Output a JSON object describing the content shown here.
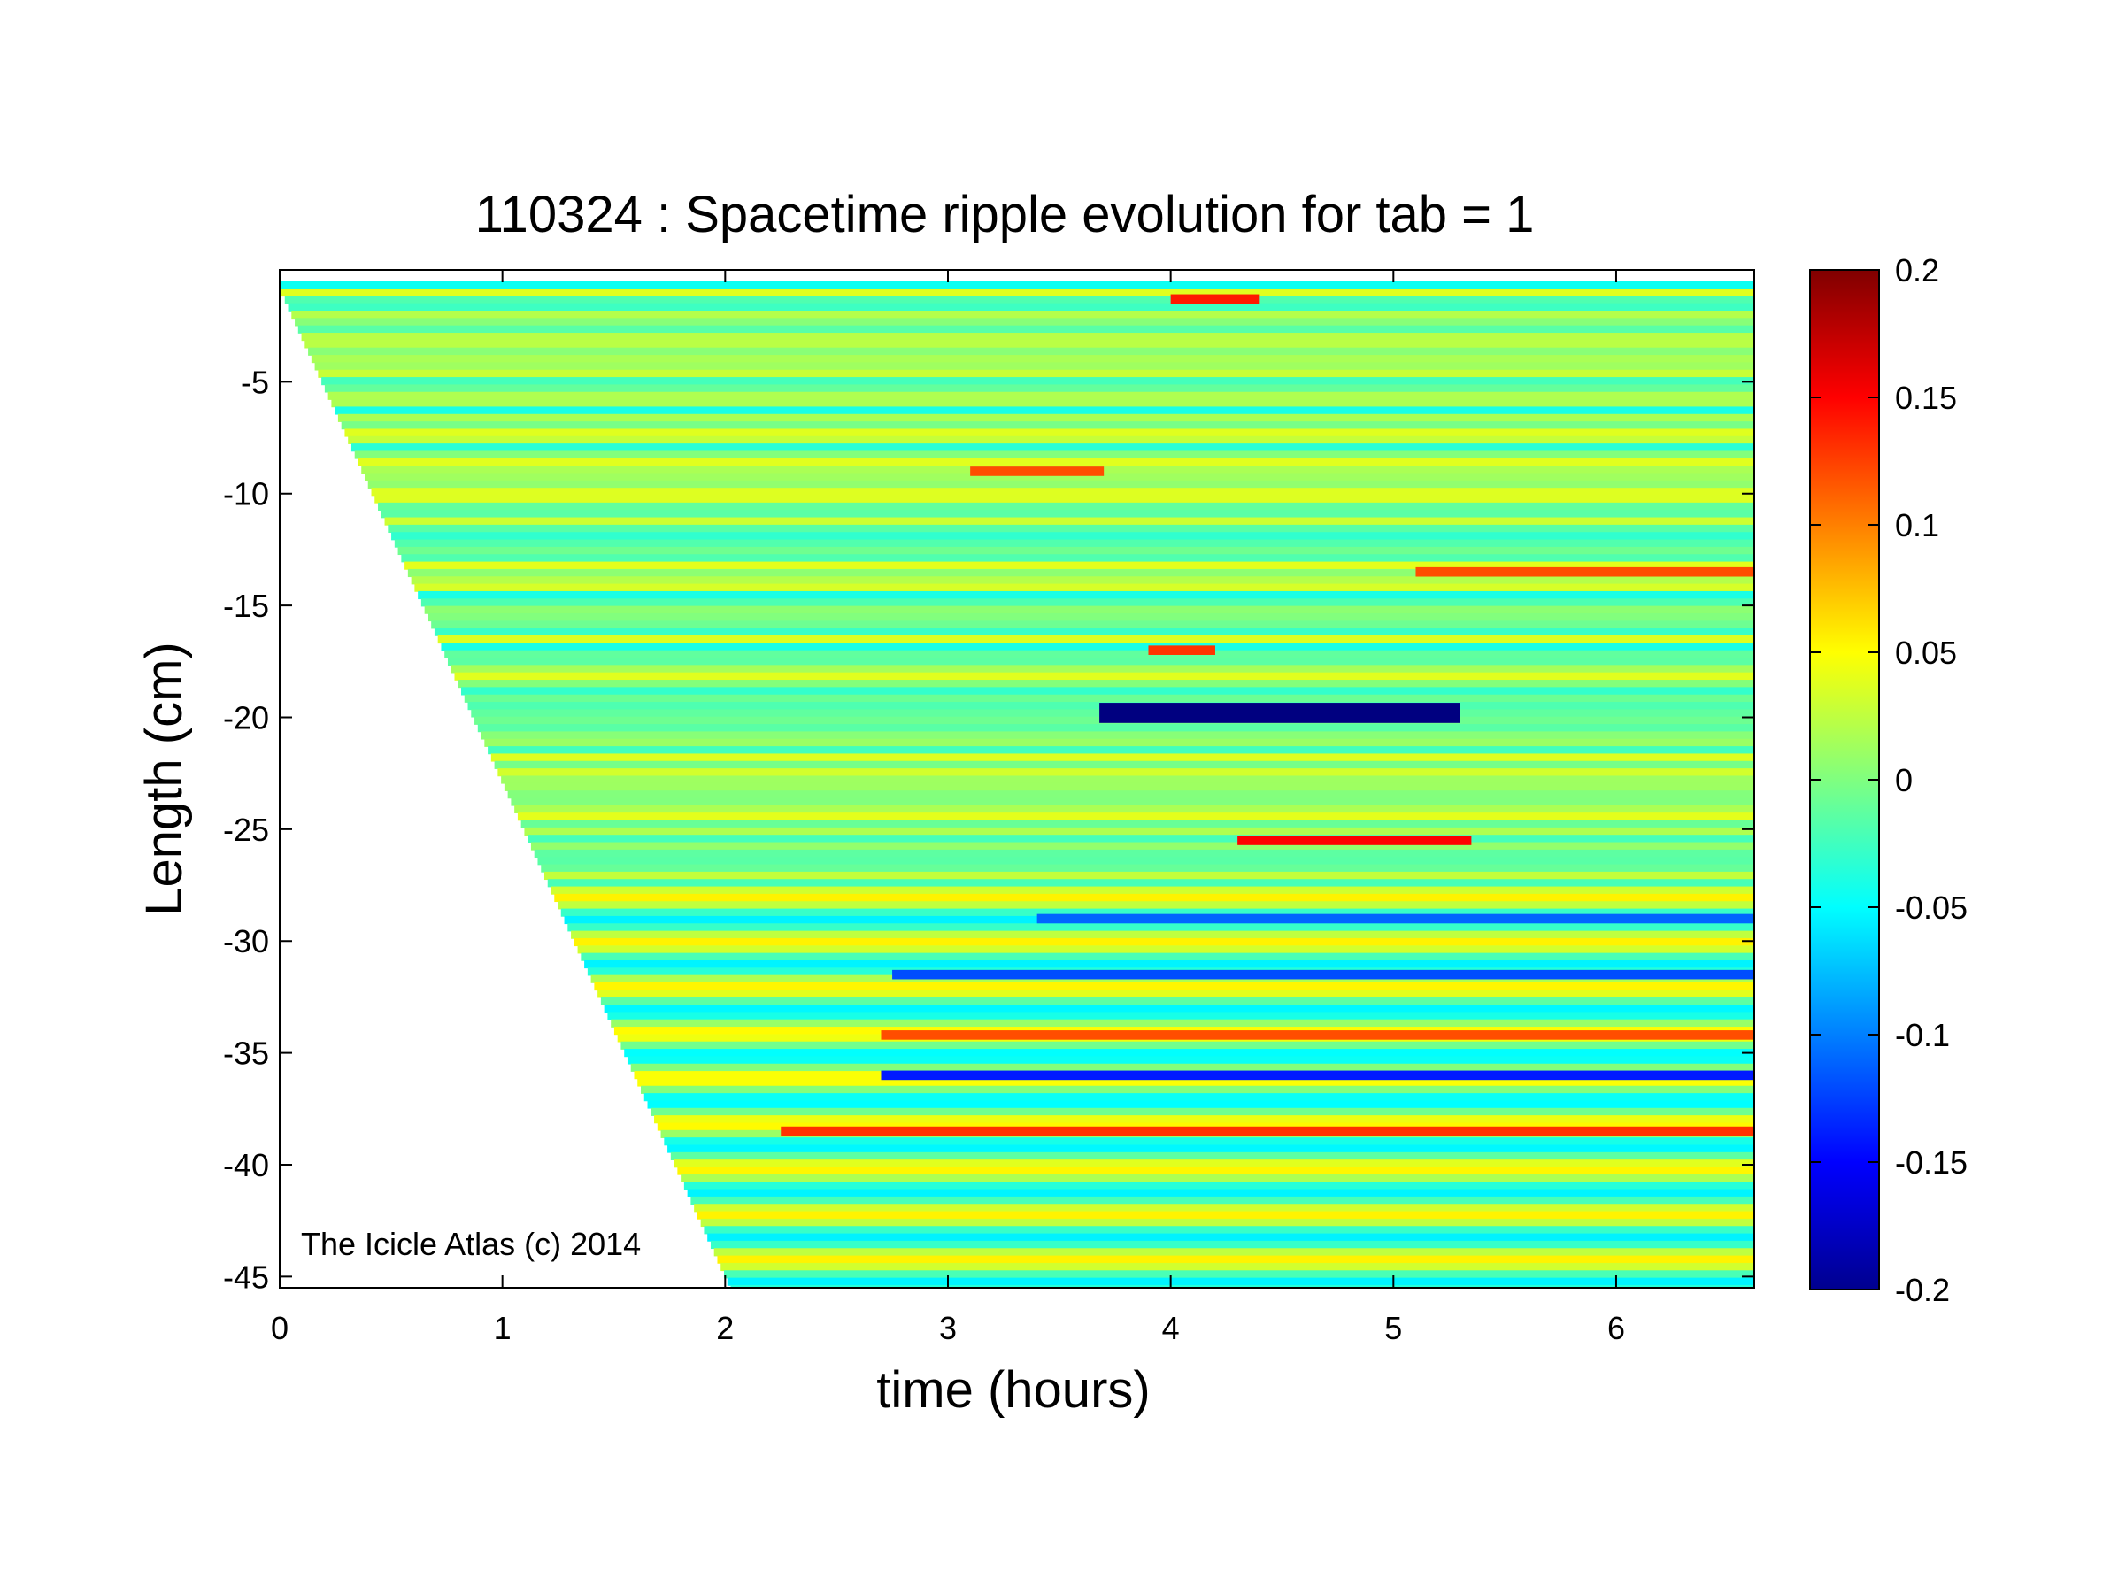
{
  "chart_data": {
    "type": "heatmap",
    "title": "110324 : Spacetime ripple evolution for tab = 1",
    "xlabel": "time (hours)",
    "ylabel": "Length (cm)",
    "xlim": [
      0,
      6.62
    ],
    "ylim": [
      -45.5,
      0
    ],
    "x_ticks": [
      0,
      1,
      2,
      3,
      4,
      5,
      6
    ],
    "x_tick_labels": [
      "0",
      "1",
      "2",
      "3",
      "4",
      "5",
      "6"
    ],
    "y_ticks": [
      -5,
      -10,
      -15,
      -20,
      -25,
      -30,
      -35,
      -40,
      -45
    ],
    "y_tick_labels": [
      "-5",
      "-10",
      "-15",
      "-20",
      "-25",
      "-30",
      "-35",
      "-40",
      "-45"
    ],
    "colorbar": {
      "colormap": "jet",
      "range": [
        -0.2,
        0.2
      ],
      "ticks": [
        0.2,
        0.15,
        0.1,
        0.05,
        0,
        -0.05,
        -0.1,
        -0.15,
        -0.2
      ],
      "tick_labels": [
        "0.2",
        "0.15",
        "0.1",
        "0.05",
        "0",
        "-0.05",
        "-0.1",
        "-0.15",
        "-0.2"
      ]
    },
    "growth_front": {
      "description_points": [
        [
          0.07,
          -2.2
        ],
        [
          2.03,
          -45.5
        ]
      ]
    },
    "features": [
      {
        "y": -19.8,
        "t_start": 3.68,
        "t_end": 5.3,
        "value": -0.2
      },
      {
        "y": -31.5,
        "t_start": 2.75,
        "t_end": 6.62,
        "value": -0.12
      },
      {
        "y": -34.2,
        "t_start": 2.7,
        "t_end": 6.62,
        "value": 0.12
      },
      {
        "y": -36.0,
        "t_start": 2.7,
        "t_end": 6.62,
        "value": -0.14
      },
      {
        "y": -38.5,
        "t_start": 2.25,
        "t_end": 6.62,
        "value": 0.13
      },
      {
        "y": -29.0,
        "t_start": 3.4,
        "t_end": 6.62,
        "value": -0.11
      },
      {
        "y": -25.5,
        "t_start": 4.3,
        "t_end": 5.35,
        "value": 0.15
      },
      {
        "y": -17.0,
        "t_start": 3.9,
        "t_end": 4.2,
        "value": 0.13
      },
      {
        "y": -13.5,
        "t_start": 5.1,
        "t_end": 6.62,
        "value": 0.12
      },
      {
        "y": -9.0,
        "t_start": 3.1,
        "t_end": 3.7,
        "value": 0.12
      },
      {
        "y": -1.3,
        "t_start": 4.0,
        "t_end": 4.4,
        "value": 0.14
      }
    ]
  },
  "watermark": "The Icicle Atlas (c) 2014"
}
